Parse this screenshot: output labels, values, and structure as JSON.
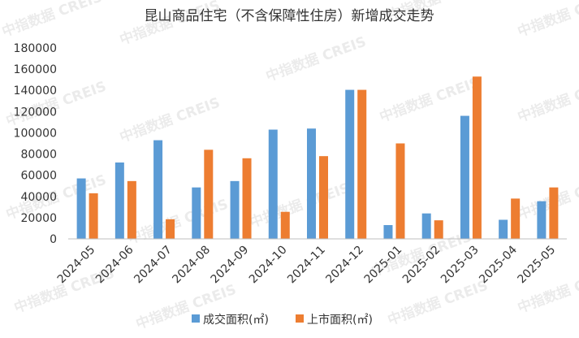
{
  "chart_data": {
    "type": "bar",
    "title": "昆山商品住宅（不含保障性住房）新增成交走势",
    "categories": [
      "2024-05",
      "2024-06",
      "2024-07",
      "2024-08",
      "2024-09",
      "2024-10",
      "2024-11",
      "2024-12",
      "2025-01",
      "2025-02",
      "2025-03",
      "2025-04",
      "2025-05"
    ],
    "series": [
      {
        "name": "成交面积(㎡)",
        "color": "#5b9bd5",
        "values": [
          57000,
          72000,
          93000,
          48500,
          54500,
          103000,
          104000,
          140500,
          13000,
          24000,
          116000,
          18000,
          35500
        ]
      },
      {
        "name": "上市面积(㎡)",
        "color": "#ed7d31",
        "values": [
          43000,
          54500,
          18500,
          84000,
          76000,
          25500,
          78000,
          140500,
          90000,
          17500,
          153000,
          38000,
          48500
        ]
      }
    ],
    "ylim": [
      0,
      180000
    ],
    "yticks": [
      0,
      20000,
      40000,
      60000,
      80000,
      100000,
      120000,
      140000,
      160000,
      180000
    ],
    "legend_position": "bottom",
    "grid": false
  },
  "watermark": "中指数据 CREIS"
}
